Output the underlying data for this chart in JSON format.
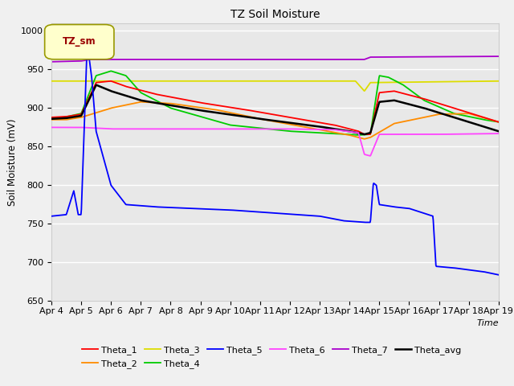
{
  "title": "TZ Soil Moisture",
  "xlabel": "Time",
  "ylabel": "Soil Moisture (mV)",
  "ylim": [
    650,
    1010
  ],
  "xlim": [
    0,
    15
  ],
  "xtick_labels": [
    "Apr 4",
    "Apr 5",
    "Apr 6",
    "Apr 7",
    "Apr 8",
    "Apr 9",
    "Apr 10",
    "Apr 11",
    "Apr 12",
    "Apr 13",
    "Apr 14",
    "Apr 15",
    "Apr 16",
    "Apr 17",
    "Apr 18",
    "Apr 19"
  ],
  "xtick_positions": [
    0,
    1,
    2,
    3,
    4,
    5,
    6,
    7,
    8,
    9,
    10,
    11,
    12,
    13,
    14,
    15
  ],
  "legend_label": "TZ_sm",
  "legend_box_facecolor": "#ffffcc",
  "legend_box_edgecolor": "#999900",
  "legend_text_color": "#990000",
  "background_color": "#f0f0f0",
  "plot_bg_color": "#e8e8e8",
  "grid_color": "#ffffff",
  "colors": {
    "Theta_1": "#ff0000",
    "Theta_2": "#ff8c00",
    "Theta_3": "#dddd00",
    "Theta_4": "#00cc00",
    "Theta_5": "#0000ff",
    "Theta_6": "#ff44ff",
    "Theta_7": "#aa00cc",
    "Theta_avg": "#000000"
  }
}
